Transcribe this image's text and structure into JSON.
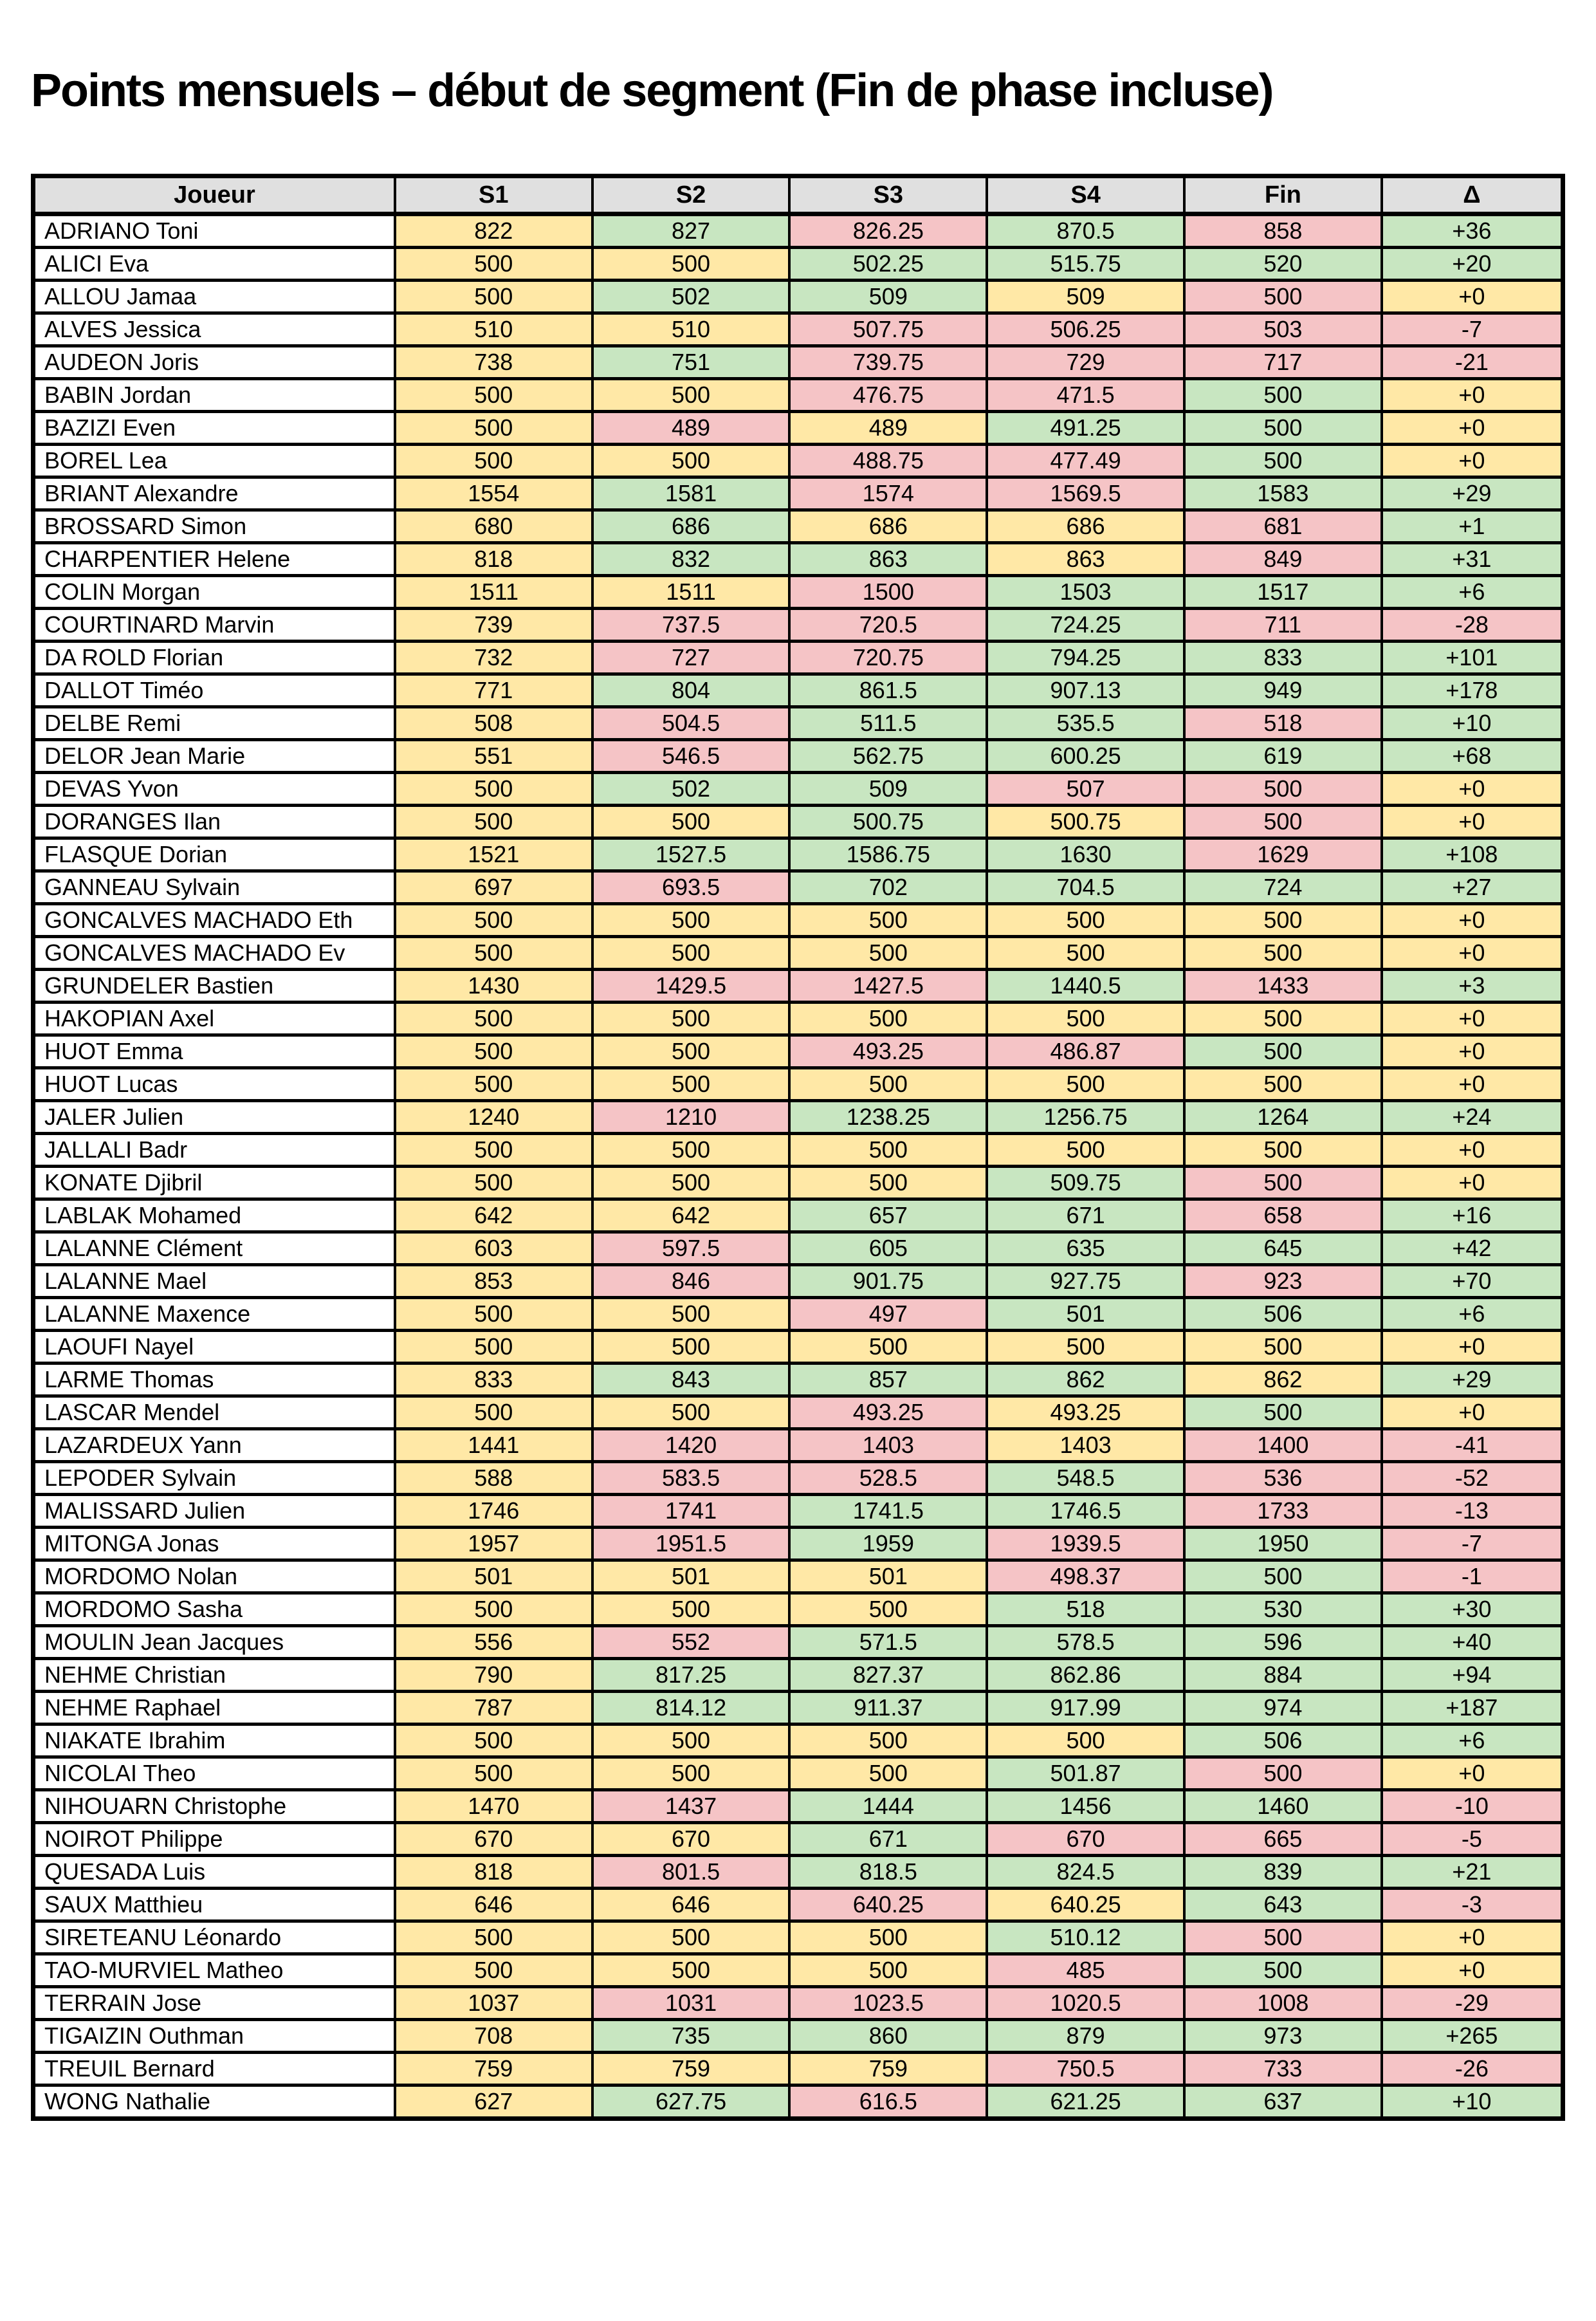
{
  "title": "Points mensuels – début de segment (Fin de phase incluse)",
  "colors": {
    "cell_yellow": "#FFE8A6",
    "cell_green": "#C8E6C1",
    "cell_pink": "#F5C4C6",
    "header_bg": "#E0E0E0",
    "border": "#000000"
  },
  "table": {
    "headers": [
      "Joueur",
      "S1",
      "S2",
      "S3",
      "S4",
      "Fin",
      "Δ"
    ],
    "rows": [
      {
        "name": "ADRIANO Toni",
        "values": [
          "822",
          "827",
          "826.25",
          "870.5",
          "858",
          "+36"
        ],
        "colors": [
          "y",
          "g",
          "p",
          "g",
          "p",
          "g"
        ]
      },
      {
        "name": "ALICI Eva",
        "values": [
          "500",
          "500",
          "502.25",
          "515.75",
          "520",
          "+20"
        ],
        "colors": [
          "y",
          "y",
          "g",
          "g",
          "g",
          "g"
        ]
      },
      {
        "name": "ALLOU Jamaa",
        "values": [
          "500",
          "502",
          "509",
          "509",
          "500",
          "+0"
        ],
        "colors": [
          "y",
          "g",
          "g",
          "y",
          "p",
          "y"
        ]
      },
      {
        "name": "ALVES Jessica",
        "values": [
          "510",
          "510",
          "507.75",
          "506.25",
          "503",
          "-7"
        ],
        "colors": [
          "y",
          "y",
          "p",
          "p",
          "p",
          "p"
        ]
      },
      {
        "name": "AUDEON Joris",
        "values": [
          "738",
          "751",
          "739.75",
          "729",
          "717",
          "-21"
        ],
        "colors": [
          "y",
          "g",
          "p",
          "p",
          "p",
          "p"
        ]
      },
      {
        "name": "BABIN Jordan",
        "values": [
          "500",
          "500",
          "476.75",
          "471.5",
          "500",
          "+0"
        ],
        "colors": [
          "y",
          "y",
          "p",
          "p",
          "g",
          "y"
        ]
      },
      {
        "name": "BAZIZI Even",
        "values": [
          "500",
          "489",
          "489",
          "491.25",
          "500",
          "+0"
        ],
        "colors": [
          "y",
          "p",
          "y",
          "g",
          "g",
          "y"
        ]
      },
      {
        "name": "BOREL Lea",
        "values": [
          "500",
          "500",
          "488.75",
          "477.49",
          "500",
          "+0"
        ],
        "colors": [
          "y",
          "y",
          "p",
          "p",
          "g",
          "y"
        ]
      },
      {
        "name": "BRIANT Alexandre",
        "values": [
          "1554",
          "1581",
          "1574",
          "1569.5",
          "1583",
          "+29"
        ],
        "colors": [
          "y",
          "g",
          "p",
          "p",
          "g",
          "g"
        ]
      },
      {
        "name": "BROSSARD Simon",
        "values": [
          "680",
          "686",
          "686",
          "686",
          "681",
          "+1"
        ],
        "colors": [
          "y",
          "g",
          "y",
          "y",
          "p",
          "g"
        ]
      },
      {
        "name": "CHARPENTIER Helene",
        "values": [
          "818",
          "832",
          "863",
          "863",
          "849",
          "+31"
        ],
        "colors": [
          "y",
          "g",
          "g",
          "y",
          "p",
          "g"
        ]
      },
      {
        "name": "COLIN Morgan",
        "values": [
          "1511",
          "1511",
          "1500",
          "1503",
          "1517",
          "+6"
        ],
        "colors": [
          "y",
          "y",
          "p",
          "g",
          "g",
          "g"
        ]
      },
      {
        "name": "COURTINARD Marvin",
        "values": [
          "739",
          "737.5",
          "720.5",
          "724.25",
          "711",
          "-28"
        ],
        "colors": [
          "y",
          "p",
          "p",
          "g",
          "p",
          "p"
        ]
      },
      {
        "name": "DA ROLD Florian",
        "values": [
          "732",
          "727",
          "720.75",
          "794.25",
          "833",
          "+101"
        ],
        "colors": [
          "y",
          "p",
          "p",
          "g",
          "g",
          "g"
        ]
      },
      {
        "name": "DALLOT Timéo",
        "values": [
          "771",
          "804",
          "861.5",
          "907.13",
          "949",
          "+178"
        ],
        "colors": [
          "y",
          "g",
          "g",
          "g",
          "g",
          "g"
        ]
      },
      {
        "name": "DELBE Remi",
        "values": [
          "508",
          "504.5",
          "511.5",
          "535.5",
          "518",
          "+10"
        ],
        "colors": [
          "y",
          "p",
          "g",
          "g",
          "p",
          "g"
        ]
      },
      {
        "name": "DELOR Jean Marie",
        "values": [
          "551",
          "546.5",
          "562.75",
          "600.25",
          "619",
          "+68"
        ],
        "colors": [
          "y",
          "p",
          "g",
          "g",
          "g",
          "g"
        ]
      },
      {
        "name": "DEVAS Yvon",
        "values": [
          "500",
          "502",
          "509",
          "507",
          "500",
          "+0"
        ],
        "colors": [
          "y",
          "g",
          "g",
          "p",
          "p",
          "y"
        ]
      },
      {
        "name": "DORANGES Ilan",
        "values": [
          "500",
          "500",
          "500.75",
          "500.75",
          "500",
          "+0"
        ],
        "colors": [
          "y",
          "y",
          "g",
          "y",
          "p",
          "y"
        ]
      },
      {
        "name": "FLASQUE Dorian",
        "values": [
          "1521",
          "1527.5",
          "1586.75",
          "1630",
          "1629",
          "+108"
        ],
        "colors": [
          "y",
          "g",
          "g",
          "g",
          "p",
          "g"
        ]
      },
      {
        "name": "GANNEAU Sylvain",
        "values": [
          "697",
          "693.5",
          "702",
          "704.5",
          "724",
          "+27"
        ],
        "colors": [
          "y",
          "p",
          "g",
          "g",
          "g",
          "g"
        ]
      },
      {
        "name": "GONCALVES MACHADO Eth",
        "values": [
          "500",
          "500",
          "500",
          "500",
          "500",
          "+0"
        ],
        "colors": [
          "y",
          "y",
          "y",
          "y",
          "y",
          "y"
        ]
      },
      {
        "name": "GONCALVES MACHADO Ev",
        "values": [
          "500",
          "500",
          "500",
          "500",
          "500",
          "+0"
        ],
        "colors": [
          "y",
          "y",
          "y",
          "y",
          "y",
          "y"
        ]
      },
      {
        "name": "GRUNDELER Bastien",
        "values": [
          "1430",
          "1429.5",
          "1427.5",
          "1440.5",
          "1433",
          "+3"
        ],
        "colors": [
          "y",
          "p",
          "p",
          "g",
          "p",
          "g"
        ]
      },
      {
        "name": "HAKOPIAN Axel",
        "values": [
          "500",
          "500",
          "500",
          "500",
          "500",
          "+0"
        ],
        "colors": [
          "y",
          "y",
          "y",
          "y",
          "y",
          "y"
        ]
      },
      {
        "name": "HUOT Emma",
        "values": [
          "500",
          "500",
          "493.25",
          "486.87",
          "500",
          "+0"
        ],
        "colors": [
          "y",
          "y",
          "p",
          "p",
          "g",
          "y"
        ]
      },
      {
        "name": "HUOT Lucas",
        "values": [
          "500",
          "500",
          "500",
          "500",
          "500",
          "+0"
        ],
        "colors": [
          "y",
          "y",
          "y",
          "y",
          "y",
          "y"
        ]
      },
      {
        "name": "JALER Julien",
        "values": [
          "1240",
          "1210",
          "1238.25",
          "1256.75",
          "1264",
          "+24"
        ],
        "colors": [
          "y",
          "p",
          "g",
          "g",
          "g",
          "g"
        ]
      },
      {
        "name": "JALLALI Badr",
        "values": [
          "500",
          "500",
          "500",
          "500",
          "500",
          "+0"
        ],
        "colors": [
          "y",
          "y",
          "y",
          "y",
          "y",
          "y"
        ]
      },
      {
        "name": "KONATE Djibril",
        "values": [
          "500",
          "500",
          "500",
          "509.75",
          "500",
          "+0"
        ],
        "colors": [
          "y",
          "y",
          "y",
          "g",
          "p",
          "y"
        ]
      },
      {
        "name": "LABLAK Mohamed",
        "values": [
          "642",
          "642",
          "657",
          "671",
          "658",
          "+16"
        ],
        "colors": [
          "y",
          "y",
          "g",
          "g",
          "p",
          "g"
        ]
      },
      {
        "name": "LALANNE Clément",
        "values": [
          "603",
          "597.5",
          "605",
          "635",
          "645",
          "+42"
        ],
        "colors": [
          "y",
          "p",
          "g",
          "g",
          "g",
          "g"
        ]
      },
      {
        "name": "LALANNE Mael",
        "values": [
          "853",
          "846",
          "901.75",
          "927.75",
          "923",
          "+70"
        ],
        "colors": [
          "y",
          "p",
          "g",
          "g",
          "p",
          "g"
        ]
      },
      {
        "name": "LALANNE Maxence",
        "values": [
          "500",
          "500",
          "497",
          "501",
          "506",
          "+6"
        ],
        "colors": [
          "y",
          "y",
          "p",
          "g",
          "g",
          "g"
        ]
      },
      {
        "name": "LAOUFI Nayel",
        "values": [
          "500",
          "500",
          "500",
          "500",
          "500",
          "+0"
        ],
        "colors": [
          "y",
          "y",
          "y",
          "y",
          "y",
          "y"
        ]
      },
      {
        "name": "LARME Thomas",
        "values": [
          "833",
          "843",
          "857",
          "862",
          "862",
          "+29"
        ],
        "colors": [
          "y",
          "g",
          "g",
          "g",
          "y",
          "g"
        ]
      },
      {
        "name": "LASCAR Mendel",
        "values": [
          "500",
          "500",
          "493.25",
          "493.25",
          "500",
          "+0"
        ],
        "colors": [
          "y",
          "y",
          "p",
          "y",
          "g",
          "y"
        ]
      },
      {
        "name": "LAZARDEUX Yann",
        "values": [
          "1441",
          "1420",
          "1403",
          "1403",
          "1400",
          "-41"
        ],
        "colors": [
          "y",
          "p",
          "p",
          "y",
          "p",
          "p"
        ]
      },
      {
        "name": "LEPODER Sylvain",
        "values": [
          "588",
          "583.5",
          "528.5",
          "548.5",
          "536",
          "-52"
        ],
        "colors": [
          "y",
          "p",
          "p",
          "g",
          "p",
          "p"
        ]
      },
      {
        "name": "MALISSARD Julien",
        "values": [
          "1746",
          "1741",
          "1741.5",
          "1746.5",
          "1733",
          "-13"
        ],
        "colors": [
          "y",
          "p",
          "g",
          "g",
          "p",
          "p"
        ]
      },
      {
        "name": "MITONGA Jonas",
        "values": [
          "1957",
          "1951.5",
          "1959",
          "1939.5",
          "1950",
          "-7"
        ],
        "colors": [
          "y",
          "p",
          "g",
          "p",
          "g",
          "p"
        ]
      },
      {
        "name": "MORDOMO Nolan",
        "values": [
          "501",
          "501",
          "501",
          "498.37",
          "500",
          "-1"
        ],
        "colors": [
          "y",
          "y",
          "y",
          "p",
          "g",
          "p"
        ]
      },
      {
        "name": "MORDOMO Sasha",
        "values": [
          "500",
          "500",
          "500",
          "518",
          "530",
          "+30"
        ],
        "colors": [
          "y",
          "y",
          "y",
          "g",
          "g",
          "g"
        ]
      },
      {
        "name": "MOULIN Jean Jacques",
        "values": [
          "556",
          "552",
          "571.5",
          "578.5",
          "596",
          "+40"
        ],
        "colors": [
          "y",
          "p",
          "g",
          "g",
          "g",
          "g"
        ]
      },
      {
        "name": "NEHME Christian",
        "values": [
          "790",
          "817.25",
          "827.37",
          "862.86",
          "884",
          "+94"
        ],
        "colors": [
          "y",
          "g",
          "g",
          "g",
          "g",
          "g"
        ]
      },
      {
        "name": "NEHME Raphael",
        "values": [
          "787",
          "814.12",
          "911.37",
          "917.99",
          "974",
          "+187"
        ],
        "colors": [
          "y",
          "g",
          "g",
          "g",
          "g",
          "g"
        ]
      },
      {
        "name": "NIAKATE Ibrahim",
        "values": [
          "500",
          "500",
          "500",
          "500",
          "506",
          "+6"
        ],
        "colors": [
          "y",
          "y",
          "y",
          "y",
          "g",
          "g"
        ]
      },
      {
        "name": "NICOLAI Theo",
        "values": [
          "500",
          "500",
          "500",
          "501.87",
          "500",
          "+0"
        ],
        "colors": [
          "y",
          "y",
          "y",
          "g",
          "p",
          "y"
        ]
      },
      {
        "name": "NIHOUARN Christophe",
        "values": [
          "1470",
          "1437",
          "1444",
          "1456",
          "1460",
          "-10"
        ],
        "colors": [
          "y",
          "p",
          "g",
          "g",
          "g",
          "p"
        ]
      },
      {
        "name": "NOIROT Philippe",
        "values": [
          "670",
          "670",
          "671",
          "670",
          "665",
          "-5"
        ],
        "colors": [
          "y",
          "y",
          "g",
          "p",
          "p",
          "p"
        ]
      },
      {
        "name": "QUESADA Luis",
        "values": [
          "818",
          "801.5",
          "818.5",
          "824.5",
          "839",
          "+21"
        ],
        "colors": [
          "y",
          "p",
          "g",
          "g",
          "g",
          "g"
        ]
      },
      {
        "name": "SAUX Matthieu",
        "values": [
          "646",
          "646",
          "640.25",
          "640.25",
          "643",
          "-3"
        ],
        "colors": [
          "y",
          "y",
          "p",
          "y",
          "g",
          "p"
        ]
      },
      {
        "name": "SIRETEANU Léonardo",
        "values": [
          "500",
          "500",
          "500",
          "510.12",
          "500",
          "+0"
        ],
        "colors": [
          "y",
          "y",
          "y",
          "g",
          "p",
          "y"
        ]
      },
      {
        "name": "TAO-MURVIEL Matheo",
        "values": [
          "500",
          "500",
          "500",
          "485",
          "500",
          "+0"
        ],
        "colors": [
          "y",
          "y",
          "y",
          "p",
          "g",
          "y"
        ]
      },
      {
        "name": "TERRAIN Jose",
        "values": [
          "1037",
          "1031",
          "1023.5",
          "1020.5",
          "1008",
          "-29"
        ],
        "colors": [
          "y",
          "p",
          "p",
          "p",
          "p",
          "p"
        ]
      },
      {
        "name": "TIGAIZIN Outhman",
        "values": [
          "708",
          "735",
          "860",
          "879",
          "973",
          "+265"
        ],
        "colors": [
          "y",
          "g",
          "g",
          "g",
          "g",
          "g"
        ]
      },
      {
        "name": "TREUIL Bernard",
        "values": [
          "759",
          "759",
          "759",
          "750.5",
          "733",
          "-26"
        ],
        "colors": [
          "y",
          "y",
          "y",
          "p",
          "p",
          "p"
        ]
      },
      {
        "name": "WONG Nathalie",
        "values": [
          "627",
          "627.75",
          "616.5",
          "621.25",
          "637",
          "+10"
        ],
        "colors": [
          "y",
          "g",
          "p",
          "g",
          "g",
          "g"
        ]
      }
    ]
  }
}
